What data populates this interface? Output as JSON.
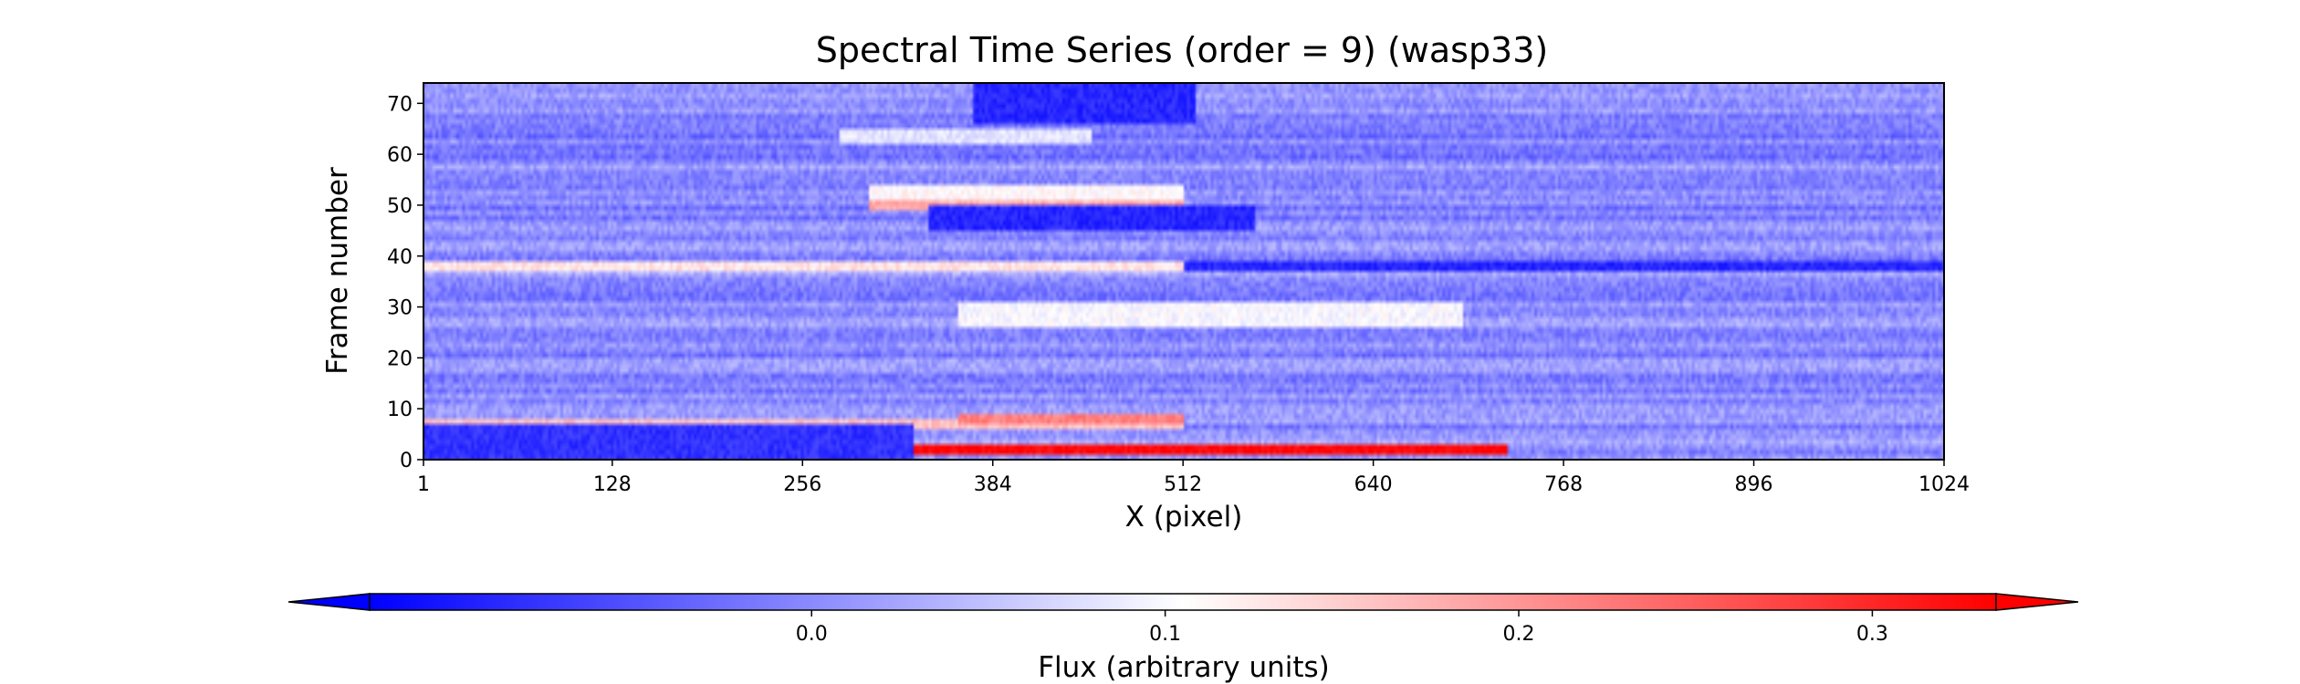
{
  "chart_data": {
    "type": "heatmap",
    "title": "Spectral Time Series (order = 9) (wasp33)",
    "xlabel": "X (pixel)",
    "ylabel": "Frame number",
    "xlim": [
      1,
      1024
    ],
    "ylim": [
      0,
      74
    ],
    "xticks": [
      1,
      128,
      256,
      384,
      512,
      640,
      768,
      896,
      1024
    ],
    "xtick_labels": [
      "1",
      "128",
      "256",
      "384",
      "512",
      "640",
      "768",
      "896",
      "1024"
    ],
    "yticks": [
      0,
      10,
      20,
      30,
      40,
      50,
      60,
      70
    ],
    "ytick_labels": [
      "0",
      "10",
      "20",
      "30",
      "40",
      "50",
      "60",
      "70"
    ],
    "n_frames": 74,
    "colormap": "bwr",
    "colormap_colors": [
      "#0000ff",
      "#ffffff",
      "#ff0000"
    ],
    "colorbar": {
      "label": "Flux (arbitrary units)",
      "vmin": -0.125,
      "vmax": 0.335,
      "ticks": [
        0.0,
        0.1,
        0.2,
        0.3
      ],
      "tick_labels": [
        "0.0",
        "0.1",
        "0.2",
        "0.3"
      ],
      "extend": "both"
    },
    "typical_value": 0.0,
    "features": [
      {
        "frames": [
          1,
          2
        ],
        "x_range": [
          330,
          730
        ],
        "value": 0.33,
        "note": "red streak"
      },
      {
        "frames": [
          6,
          7
        ],
        "x_range": [
          1,
          512
        ],
        "value": 0.16
      },
      {
        "frames": [
          7,
          8
        ],
        "x_range": [
          360,
          512
        ],
        "value": 0.22
      },
      {
        "frames": [
          37,
          38
        ],
        "x_range": [
          1,
          512
        ],
        "value": 0.13
      },
      {
        "frames": [
          37,
          38
        ],
        "x_range": [
          512,
          1024
        ],
        "value": -0.09
      },
      {
        "frames": [
          49,
          50
        ],
        "x_range": [
          300,
          512
        ],
        "value": 0.18
      },
      {
        "frames": [
          51,
          53
        ],
        "x_range": [
          300,
          512
        ],
        "value": 0.11
      },
      {
        "frames": [
          26,
          30
        ],
        "x_range": [
          360,
          700
        ],
        "value": 0.1
      },
      {
        "frames": [
          62,
          64
        ],
        "x_range": [
          280,
          450
        ],
        "value": 0.08
      },
      {
        "frames": [
          45,
          49
        ],
        "x_range": [
          340,
          560
        ],
        "value": -0.09
      },
      {
        "frames": [
          66,
          74
        ],
        "x_range": [
          370,
          520
        ],
        "value": -0.09
      },
      {
        "frames": [
          0,
          6
        ],
        "x_range": [
          1,
          330
        ],
        "value": -0.08
      }
    ]
  }
}
